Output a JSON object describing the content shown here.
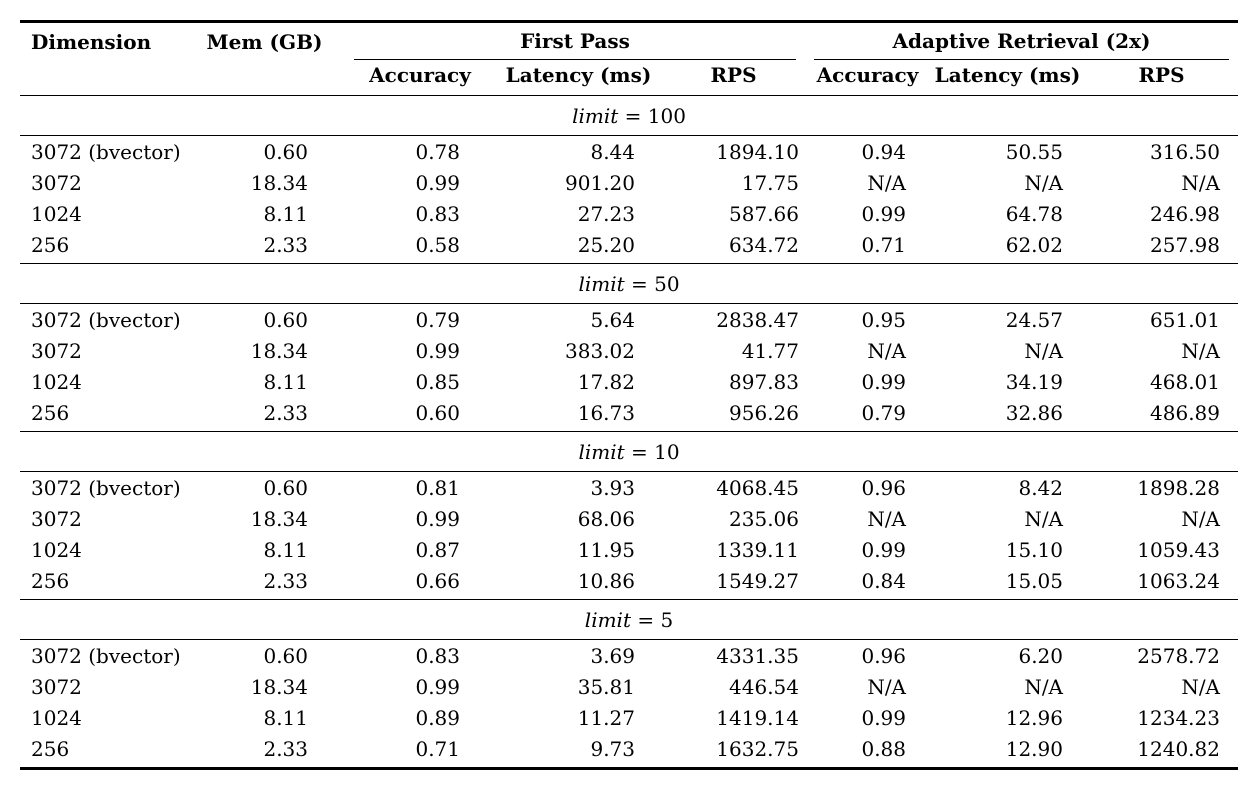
{
  "table": {
    "header": {
      "dimension": "Dimension",
      "mem": "Mem (GB)",
      "group_first_pass": "First Pass",
      "group_adaptive": "Adaptive Retrieval (2x)",
      "sub": [
        "Accuracy",
        "Latency (ms)",
        "RPS",
        "Accuracy",
        "Latency (ms)",
        "RPS"
      ]
    },
    "sections": [
      {
        "label_var": "limit",
        "label_op": "=",
        "label_value": "100",
        "rows": [
          {
            "dimension": "3072 (bvector)",
            "mem": "0.60",
            "fp_accuracy": "0.78",
            "fp_latency": "8.44",
            "fp_rps": "1894.10",
            "ar_accuracy": "0.94",
            "ar_latency": "50.55",
            "ar_rps": "316.50"
          },
          {
            "dimension": "3072",
            "mem": "18.34",
            "fp_accuracy": "0.99",
            "fp_latency": "901.20",
            "fp_rps": "17.75",
            "ar_accuracy": "N/A",
            "ar_latency": "N/A",
            "ar_rps": "N/A"
          },
          {
            "dimension": "1024",
            "mem": "8.11",
            "fp_accuracy": "0.83",
            "fp_latency": "27.23",
            "fp_rps": "587.66",
            "ar_accuracy": "0.99",
            "ar_latency": "64.78",
            "ar_rps": "246.98"
          },
          {
            "dimension": "256",
            "mem": "2.33",
            "fp_accuracy": "0.58",
            "fp_latency": "25.20",
            "fp_rps": "634.72",
            "ar_accuracy": "0.71",
            "ar_latency": "62.02",
            "ar_rps": "257.98"
          }
        ]
      },
      {
        "label_var": "limit",
        "label_op": "=",
        "label_value": "50",
        "rows": [
          {
            "dimension": "3072 (bvector)",
            "mem": "0.60",
            "fp_accuracy": "0.79",
            "fp_latency": "5.64",
            "fp_rps": "2838.47",
            "ar_accuracy": "0.95",
            "ar_latency": "24.57",
            "ar_rps": "651.01"
          },
          {
            "dimension": "3072",
            "mem": "18.34",
            "fp_accuracy": "0.99",
            "fp_latency": "383.02",
            "fp_rps": "41.77",
            "ar_accuracy": "N/A",
            "ar_latency": "N/A",
            "ar_rps": "N/A"
          },
          {
            "dimension": "1024",
            "mem": "8.11",
            "fp_accuracy": "0.85",
            "fp_latency": "17.82",
            "fp_rps": "897.83",
            "ar_accuracy": "0.99",
            "ar_latency": "34.19",
            "ar_rps": "468.01"
          },
          {
            "dimension": "256",
            "mem": "2.33",
            "fp_accuracy": "0.60",
            "fp_latency": "16.73",
            "fp_rps": "956.26",
            "ar_accuracy": "0.79",
            "ar_latency": "32.86",
            "ar_rps": "486.89"
          }
        ]
      },
      {
        "label_var": "limit",
        "label_op": "=",
        "label_value": "10",
        "rows": [
          {
            "dimension": "3072 (bvector)",
            "mem": "0.60",
            "fp_accuracy": "0.81",
            "fp_latency": "3.93",
            "fp_rps": "4068.45",
            "ar_accuracy": "0.96",
            "ar_latency": "8.42",
            "ar_rps": "1898.28"
          },
          {
            "dimension": "3072",
            "mem": "18.34",
            "fp_accuracy": "0.99",
            "fp_latency": "68.06",
            "fp_rps": "235.06",
            "ar_accuracy": "N/A",
            "ar_latency": "N/A",
            "ar_rps": "N/A"
          },
          {
            "dimension": "1024",
            "mem": "8.11",
            "fp_accuracy": "0.87",
            "fp_latency": "11.95",
            "fp_rps": "1339.11",
            "ar_accuracy": "0.99",
            "ar_latency": "15.10",
            "ar_rps": "1059.43"
          },
          {
            "dimension": "256",
            "mem": "2.33",
            "fp_accuracy": "0.66",
            "fp_latency": "10.86",
            "fp_rps": "1549.27",
            "ar_accuracy": "0.84",
            "ar_latency": "15.05",
            "ar_rps": "1063.24"
          }
        ]
      },
      {
        "label_var": "limit",
        "label_op": "=",
        "label_value": "5",
        "rows": [
          {
            "dimension": "3072 (bvector)",
            "mem": "0.60",
            "fp_accuracy": "0.83",
            "fp_latency": "3.69",
            "fp_rps": "4331.35",
            "ar_accuracy": "0.96",
            "ar_latency": "6.20",
            "ar_rps": "2578.72"
          },
          {
            "dimension": "3072",
            "mem": "18.34",
            "fp_accuracy": "0.99",
            "fp_latency": "35.81",
            "fp_rps": "446.54",
            "ar_accuracy": "N/A",
            "ar_latency": "N/A",
            "ar_rps": "N/A"
          },
          {
            "dimension": "1024",
            "mem": "8.11",
            "fp_accuracy": "0.89",
            "fp_latency": "11.27",
            "fp_rps": "1419.14",
            "ar_accuracy": "0.99",
            "ar_latency": "12.96",
            "ar_rps": "1234.23"
          },
          {
            "dimension": "256",
            "mem": "2.33",
            "fp_accuracy": "0.71",
            "fp_latency": "9.73",
            "fp_rps": "1632.75",
            "ar_accuracy": "0.88",
            "ar_latency": "12.90",
            "ar_rps": "1240.82"
          }
        ]
      }
    ]
  }
}
